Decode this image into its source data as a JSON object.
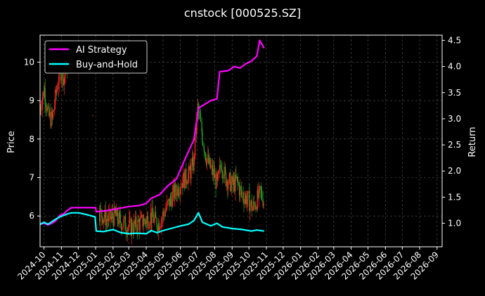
{
  "chart_data": {
    "type": "line",
    "title": "cnstock [000525.SZ]",
    "left_axis": {
      "label": "Price",
      "ticks": [
        6,
        7,
        8,
        9,
        10
      ],
      "range": [
        5.2,
        10.7
      ]
    },
    "right_axis": {
      "label": "Return",
      "ticks": [
        "1.0",
        "1.5",
        "2.0",
        "2.5",
        "3.0",
        "3.5",
        "4.0",
        "4.5"
      ],
      "range": [
        0.55,
        4.6
      ]
    },
    "x_axis": {
      "type": "date",
      "range": [
        "2024-09-24",
        "2026-09-10"
      ],
      "ticks": [
        "2024-10",
        "2024-11",
        "2024-12",
        "2025-01",
        "2025-02",
        "2025-03",
        "2025-04",
        "2025-05",
        "2025-06",
        "2025-07",
        "2025-08",
        "2025-09",
        "2025-10",
        "2025-11",
        "2025-12",
        "2026-01",
        "2026-02",
        "2026-03",
        "2026-04",
        "2026-05",
        "2026-06",
        "2026-07",
        "2026-08",
        "2026-09"
      ]
    },
    "grid": true,
    "legend": {
      "placement": "top-left",
      "entries": [
        "AI Strategy",
        "Buy-and-Hold"
      ]
    },
    "colors": {
      "ai": "#ff00ff",
      "bh": "#00ffff",
      "up": "#ff2020",
      "down": "#1fa01f",
      "grid": "#555555"
    },
    "series": [
      {
        "name": "AI Strategy",
        "axis": "right",
        "points": [
          [
            "2024-09-24",
            0.98
          ],
          [
            "2024-10-01",
            1.0
          ],
          [
            "2024-10-08",
            0.97
          ],
          [
            "2024-10-15",
            1.0
          ],
          [
            "2024-10-22",
            1.05
          ],
          [
            "2024-10-29",
            1.15
          ],
          [
            "2024-11-05",
            1.18
          ],
          [
            "2024-11-12",
            1.25
          ],
          [
            "2024-11-19",
            1.3
          ],
          [
            "2024-11-26",
            1.3
          ],
          [
            "2024-12-10",
            1.3
          ],
          [
            "2024-12-24",
            1.3
          ],
          [
            "2025-01-01",
            1.3
          ],
          [
            "2025-01-02",
            1.22
          ],
          [
            "2025-01-20",
            1.24
          ],
          [
            "2025-02-10",
            1.28
          ],
          [
            "2025-03-01",
            1.32
          ],
          [
            "2025-03-20",
            1.34
          ],
          [
            "2025-04-01",
            1.38
          ],
          [
            "2025-04-10",
            1.48
          ],
          [
            "2025-04-25",
            1.55
          ],
          [
            "2025-05-10",
            1.72
          ],
          [
            "2025-05-25",
            1.85
          ],
          [
            "2025-06-10",
            2.25
          ],
          [
            "2025-06-25",
            2.6
          ],
          [
            "2025-07-03",
            3.2
          ],
          [
            "2025-07-10",
            3.25
          ],
          [
            "2025-07-25",
            3.35
          ],
          [
            "2025-08-05",
            3.38
          ],
          [
            "2025-08-10",
            3.9
          ],
          [
            "2025-08-25",
            3.92
          ],
          [
            "2025-09-05",
            4.0
          ],
          [
            "2025-09-15",
            3.97
          ],
          [
            "2025-09-25",
            4.05
          ],
          [
            "2025-10-05",
            4.1
          ],
          [
            "2025-10-15",
            4.2
          ],
          [
            "2025-10-20",
            4.5
          ],
          [
            "2025-10-28",
            4.35
          ]
        ]
      },
      {
        "name": "Buy-and-Hold",
        "axis": "right",
        "points": [
          [
            "2024-09-24",
            0.98
          ],
          [
            "2024-10-01",
            1.02
          ],
          [
            "2024-10-08",
            0.98
          ],
          [
            "2024-10-15",
            1.03
          ],
          [
            "2024-10-22",
            1.08
          ],
          [
            "2024-10-29",
            1.12
          ],
          [
            "2024-11-05",
            1.15
          ],
          [
            "2024-11-12",
            1.18
          ],
          [
            "2024-11-19",
            1.2
          ],
          [
            "2024-12-01",
            1.2
          ],
          [
            "2024-12-15",
            1.17
          ],
          [
            "2024-12-31",
            1.12
          ],
          [
            "2025-01-02",
            0.85
          ],
          [
            "2025-01-15",
            0.84
          ],
          [
            "2025-02-01",
            0.88
          ],
          [
            "2025-02-15",
            0.82
          ],
          [
            "2025-03-01",
            0.8
          ],
          [
            "2025-03-15",
            0.81
          ],
          [
            "2025-04-01",
            0.8
          ],
          [
            "2025-04-10",
            0.86
          ],
          [
            "2025-04-20",
            0.82
          ],
          [
            "2025-05-01",
            0.86
          ],
          [
            "2025-05-15",
            0.9
          ],
          [
            "2025-06-01",
            0.95
          ],
          [
            "2025-06-15",
            0.98
          ],
          [
            "2025-06-25",
            1.05
          ],
          [
            "2025-07-03",
            1.2
          ],
          [
            "2025-07-10",
            1.02
          ],
          [
            "2025-07-25",
            0.95
          ],
          [
            "2025-08-05",
            1.0
          ],
          [
            "2025-08-15",
            0.93
          ],
          [
            "2025-09-01",
            0.9
          ],
          [
            "2025-09-20",
            0.88
          ],
          [
            "2025-10-05",
            0.85
          ],
          [
            "2025-10-15",
            0.87
          ],
          [
            "2025-10-28",
            0.85
          ]
        ]
      }
    ],
    "price_path": {
      "axis": "left",
      "points": [
        [
          "2024-09-24",
          8.8
        ],
        [
          "2024-10-02",
          9.3
        ],
        [
          "2024-10-09",
          8.6
        ],
        [
          "2024-10-16",
          8.5
        ],
        [
          "2024-10-23",
          9.2
        ],
        [
          "2024-10-30",
          9.8
        ],
        [
          "2024-11-06",
          9.6
        ],
        [
          "2024-11-13",
          10.0
        ],
        [
          "2024-11-20",
          10.1
        ],
        [
          "2024-11-27",
          10.0
        ],
        [
          "2025-01-08",
          6.1
        ],
        [
          "2025-01-22",
          5.9
        ],
        [
          "2025-02-05",
          6.0
        ],
        [
          "2025-02-19",
          5.8
        ],
        [
          "2025-03-05",
          5.7
        ],
        [
          "2025-03-19",
          5.8
        ],
        [
          "2025-04-02",
          5.9
        ],
        [
          "2025-04-09",
          6.0
        ],
        [
          "2025-04-23",
          5.8
        ],
        [
          "2025-05-07",
          6.2
        ],
        [
          "2025-05-21",
          6.6
        ],
        [
          "2025-06-04",
          6.9
        ],
        [
          "2025-06-18",
          7.1
        ],
        [
          "2025-06-25",
          7.4
        ],
        [
          "2025-07-02",
          8.8
        ],
        [
          "2025-07-09",
          8.2
        ],
        [
          "2025-07-16",
          7.6
        ],
        [
          "2025-07-23",
          7.3
        ],
        [
          "2025-07-30",
          7.1
        ],
        [
          "2025-08-06",
          6.8
        ],
        [
          "2025-08-13",
          7.4
        ],
        [
          "2025-08-20",
          7.0
        ],
        [
          "2025-08-27",
          6.9
        ],
        [
          "2025-09-03",
          6.8
        ],
        [
          "2025-09-10",
          6.9
        ],
        [
          "2025-09-17",
          6.6
        ],
        [
          "2025-09-24",
          6.5
        ],
        [
          "2025-10-01",
          6.4
        ],
        [
          "2025-10-08",
          6.2
        ],
        [
          "2025-10-15",
          6.4
        ],
        [
          "2025-10-22",
          6.6
        ],
        [
          "2025-10-28",
          6.4
        ]
      ]
    }
  }
}
